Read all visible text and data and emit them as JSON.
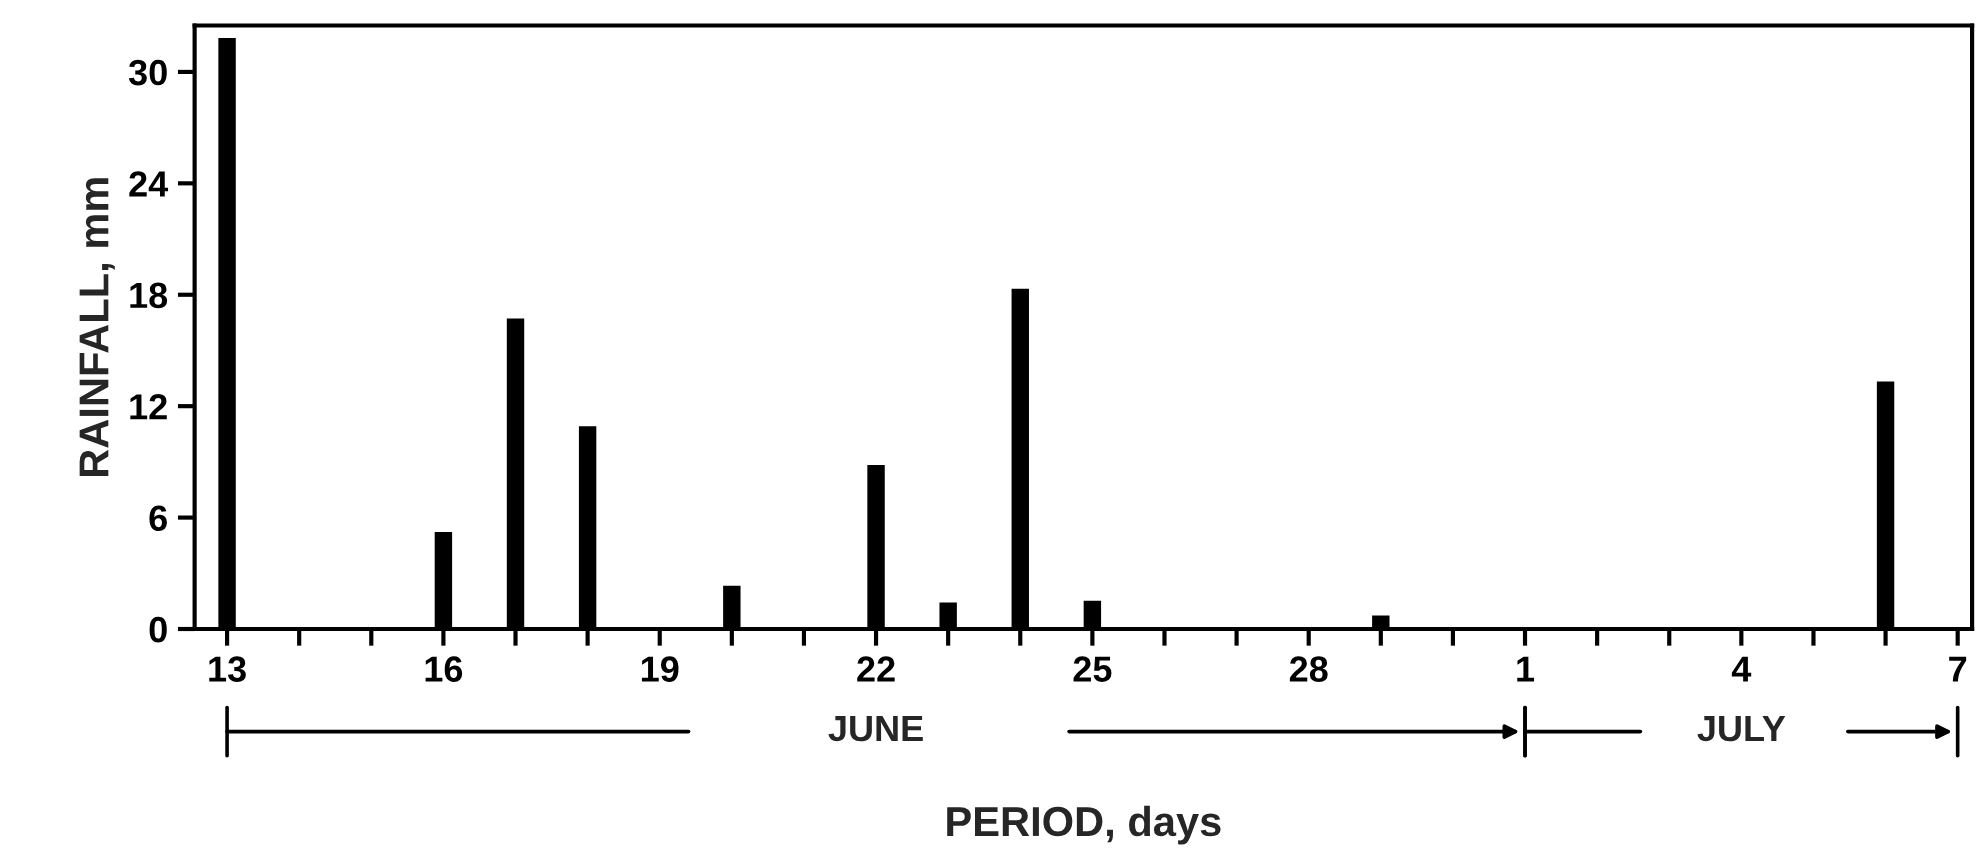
{
  "chart_data": {
    "type": "bar",
    "xlabel": "PERIOD, days",
    "ylabel": "RAINFALL, mm",
    "categories": [
      "13",
      null,
      null,
      "16",
      null,
      null,
      "19",
      null,
      null,
      "22",
      null,
      null,
      "25",
      null,
      null,
      "28",
      null,
      null,
      "1",
      null,
      null,
      "4",
      null,
      null,
      "7"
    ],
    "values": [
      31.9,
      null,
      null,
      5.3,
      16.8,
      11.0,
      null,
      2.4,
      null,
      8.9,
      1.5,
      18.4,
      1.6,
      null,
      null,
      null,
      0.8,
      null,
      null,
      null,
      null,
      null,
      null,
      13.4,
      null
    ],
    "color": "#000000",
    "ylim": [
      0,
      32.5
    ],
    "yticks": [
      0,
      6,
      12,
      18,
      24,
      30
    ],
    "grid": false,
    "annotations": [
      "JUNE",
      "JULY"
    ]
  }
}
